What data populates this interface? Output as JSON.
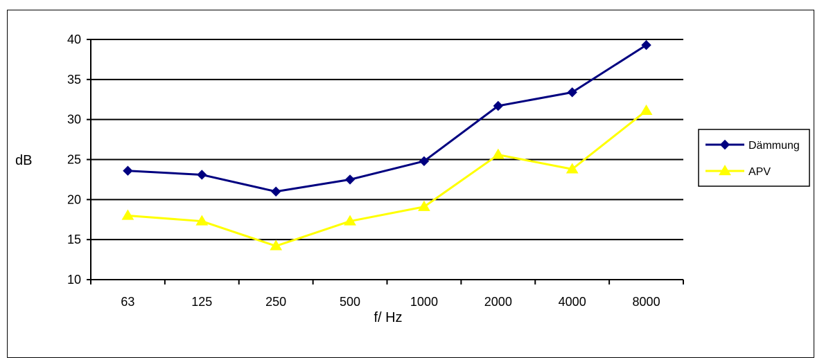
{
  "chart_data": {
    "type": "line",
    "categories": [
      "63",
      "125",
      "250",
      "500",
      "1000",
      "2000",
      "4000",
      "8000"
    ],
    "series": [
      {
        "name": "Dämmung",
        "values": [
          23.6,
          23.1,
          21.0,
          22.5,
          24.8,
          31.7,
          33.4,
          39.3
        ],
        "color": "#000080",
        "marker": "diamond"
      },
      {
        "name": "APV",
        "values": [
          18.0,
          17.3,
          14.2,
          17.3,
          19.1,
          25.6,
          23.8,
          31.1
        ],
        "color": "#FFFF00",
        "marker": "triangle"
      }
    ],
    "xlabel": "f/ Hz",
    "ylabel": "dB",
    "ylim": [
      10,
      40
    ],
    "yticks": [
      "10",
      "15",
      "20",
      "25",
      "30",
      "35",
      "40"
    ],
    "grid": "horizontal major",
    "legend": "right"
  }
}
